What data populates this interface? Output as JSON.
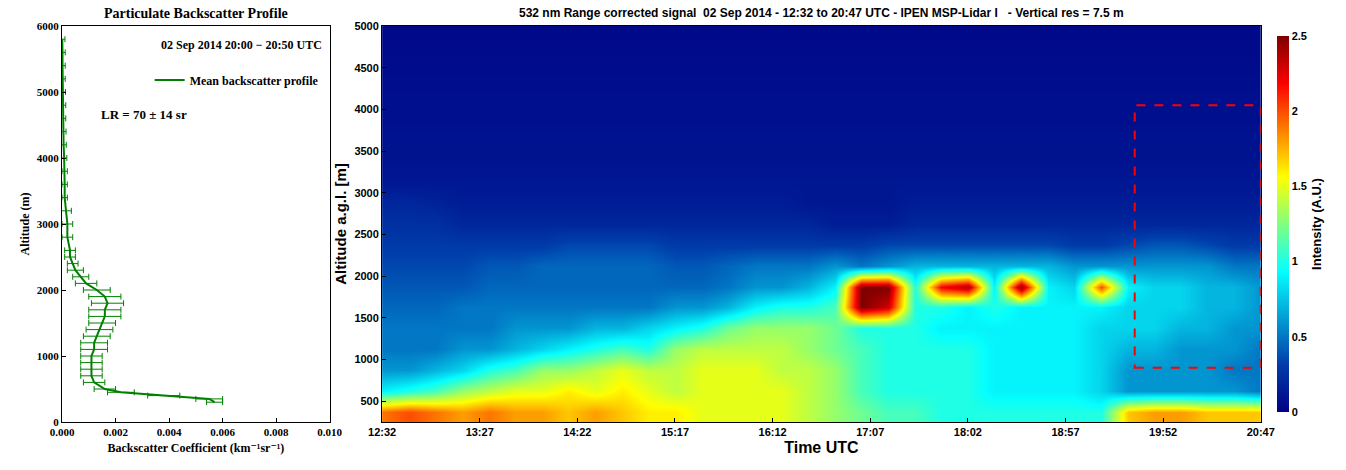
{
  "chart_data": [
    {
      "type": "line",
      "title": "Particulate Backscatter Profile",
      "x_label": "Backscatter Coefficient (km⁻¹sr⁻¹)",
      "y_label": "Altitude (m)",
      "annotations": [
        "02 Sep 2014 20:00 − 20:50 UTC",
        "LR = 70 ± 14 sr"
      ],
      "legend": "upper right",
      "grid": false,
      "xlim": [
        0,
        0.01
      ],
      "xticks": [
        {
          "value": 0,
          "label": "0.000"
        },
        {
          "value": 0.002,
          "label": "0.002"
        },
        {
          "value": 0.004,
          "label": "0.004"
        },
        {
          "value": 0.006,
          "label": "0.006"
        },
        {
          "value": 0.008,
          "label": "0.008"
        },
        {
          "value": 0.01,
          "label": "0.010"
        }
      ],
      "ylim": [
        0,
        6000
      ],
      "yticks": [
        0,
        1000,
        2000,
        3000,
        4000,
        5000,
        6000
      ],
      "series": [
        {
          "name": "Mean backscatter profile",
          "color": "#008000",
          "y": [
            300,
            350,
            400,
            450,
            500,
            600,
            700,
            800,
            900,
            1000,
            1100,
            1200,
            1300,
            1400,
            1500,
            1600,
            1700,
            1800,
            1900,
            2000,
            2100,
            2200,
            2300,
            2400,
            2500,
            2600,
            2800,
            3000,
            3200,
            3400,
            3600,
            3800,
            4000,
            4200,
            4400,
            4600,
            4800,
            5000,
            5200,
            5400,
            5600,
            5800
          ],
          "x": [
            0.0057,
            0.0055,
            0.0038,
            0.0022,
            0.0016,
            0.0012,
            0.0011,
            0.0011,
            0.0011,
            0.0011,
            0.0012,
            0.0012,
            0.0013,
            0.0014,
            0.0015,
            0.0016,
            0.0016,
            0.0017,
            0.0016,
            0.0013,
            0.0009,
            0.0007,
            0.0005,
            0.0004,
            0.0003,
            0.0003,
            0.0002,
            0.0002,
            0.00015,
            0.0001,
            0.0001,
            0.0001,
            8e-05,
            6e-05,
            5e-05,
            4e-05,
            4e-05,
            3e-05,
            2e-05,
            2e-05,
            2e-05,
            1e-05
          ],
          "x_error": [
            0.0003,
            0.0005,
            0.0006,
            0.0005,
            0.0004,
            0.0004,
            0.0004,
            0.0004,
            0.0004,
            0.0004,
            0.0005,
            0.0005,
            0.0005,
            0.0005,
            0.0005,
            0.0006,
            0.0006,
            0.0006,
            0.0006,
            0.0005,
            0.0004,
            0.0003,
            0.0003,
            0.0002,
            0.0002,
            0.0002,
            0.0002,
            0.0002,
            0.0002,
            0.0001,
            0.0001,
            0.0001,
            0.0001,
            0.0001,
            0.0001,
            0.0001,
            0.0001,
            0.0001,
            0.0001,
            0.0001,
            0.0001,
            0.0001
          ]
        }
      ]
    },
    {
      "type": "heatmap",
      "title": "532 nm Range corrected signal  02 Sep 2014 - 12:32 to 20:47 UTC - IPEN MSP-Lidar I   - Vertical res = 7.5 m",
      "x_label": "Time UTC",
      "y_label": "Altitude a.g.l. [m]",
      "colorbar_title": "Intensity (A.U.)",
      "grid": false,
      "xlim": [
        752,
        1247
      ],
      "xticks": [
        {
          "value": 752,
          "label": "12:32"
        },
        {
          "value": 807,
          "label": "13:27"
        },
        {
          "value": 862,
          "label": "14:22"
        },
        {
          "value": 917,
          "label": "15:17"
        },
        {
          "value": 972,
          "label": "16:12"
        },
        {
          "value": 1027,
          "label": "17:07"
        },
        {
          "value": 1082,
          "label": "18:02"
        },
        {
          "value": 1137,
          "label": "18:57"
        },
        {
          "value": 1192,
          "label": "19:52"
        },
        {
          "value": 1247,
          "label": "20:47"
        }
      ],
      "ylim": [
        250,
        5000
      ],
      "yticks": [
        500,
        1000,
        1500,
        2000,
        2500,
        3000,
        3500,
        4000,
        4500,
        5000
      ],
      "zlim": [
        0,
        2.5
      ],
      "zticks": [
        0,
        0.5,
        1,
        1.5,
        2,
        2.5
      ],
      "highlight_box": {
        "x": [
          1176,
          1247
        ],
        "y": [
          900,
          4050
        ],
        "color": "#ff0000"
      },
      "x": [
        752,
        767,
        782,
        797,
        812,
        827,
        842,
        857,
        872,
        887,
        902,
        917,
        932,
        947,
        962,
        977,
        992,
        1007,
        1022,
        1037,
        1052,
        1067,
        1082,
        1097,
        1112,
        1127,
        1142,
        1157,
        1172,
        1187,
        1202,
        1217,
        1232,
        1247
      ],
      "y": [
        375,
        625,
        875,
        1125,
        1375,
        1625,
        1875,
        2125,
        2375,
        2625,
        2875,
        3125,
        3375,
        3625,
        3875,
        4125,
        4375,
        4625,
        4875
      ],
      "z": [
        [
          1.9,
          2.0,
          1.9,
          1.8,
          1.9,
          1.8,
          1.8,
          1.7,
          1.8,
          1.7,
          1.6,
          1.6,
          1.5,
          1.5,
          1.5,
          1.5,
          1.4,
          1.3,
          1.2,
          1.1,
          1.1,
          1.0,
          1.0,
          1.0,
          1.0,
          1.0,
          1.0,
          1.0,
          1.7,
          1.8,
          1.8,
          1.7,
          1.7,
          1.7
        ],
        [
          0.9,
          1.0,
          1.1,
          1.3,
          1.4,
          1.5,
          1.5,
          1.6,
          1.5,
          1.6,
          1.5,
          1.4,
          1.5,
          1.5,
          1.5,
          1.5,
          1.4,
          1.3,
          1.1,
          1.0,
          1.0,
          1.0,
          1.0,
          0.9,
          0.9,
          0.9,
          0.9,
          0.8,
          0.6,
          0.6,
          0.6,
          0.6,
          0.6,
          0.5
        ],
        [
          0.6,
          0.6,
          0.7,
          0.8,
          1.0,
          1.1,
          1.3,
          1.3,
          1.4,
          1.5,
          1.4,
          1.4,
          1.5,
          1.5,
          1.5,
          1.4,
          1.4,
          1.3,
          1.1,
          1.0,
          1.0,
          1.0,
          1.0,
          0.9,
          0.9,
          0.9,
          0.9,
          0.8,
          0.6,
          0.6,
          0.6,
          0.6,
          0.5,
          0.5
        ],
        [
          0.5,
          0.5,
          0.5,
          0.6,
          0.6,
          0.7,
          0.8,
          0.9,
          1.0,
          1.1,
          1.0,
          1.3,
          1.4,
          1.4,
          1.4,
          1.4,
          1.3,
          1.2,
          1.1,
          1.0,
          1.0,
          1.0,
          1.0,
          0.9,
          0.9,
          0.9,
          0.9,
          0.8,
          0.7,
          0.7,
          0.6,
          0.6,
          0.6,
          0.5
        ],
        [
          0.5,
          0.5,
          0.5,
          0.5,
          0.5,
          0.6,
          0.6,
          0.6,
          0.7,
          0.7,
          0.8,
          0.9,
          1.0,
          1.2,
          1.3,
          1.3,
          1.3,
          1.2,
          1.0,
          1.0,
          1.0,
          0.9,
          0.9,
          0.9,
          0.9,
          0.9,
          0.9,
          0.8,
          0.8,
          0.8,
          0.7,
          0.7,
          0.6,
          0.6
        ],
        [
          0.45,
          0.45,
          0.45,
          0.5,
          0.5,
          0.5,
          0.5,
          0.5,
          0.5,
          0.5,
          0.5,
          0.6,
          0.6,
          0.7,
          0.9,
          1.0,
          1.0,
          1.1,
          2.5,
          2.3,
          1.0,
          1.0,
          0.9,
          1.0,
          0.9,
          0.9,
          0.9,
          0.9,
          0.8,
          0.8,
          0.8,
          0.7,
          0.7,
          0.6
        ],
        [
          0.4,
          0.4,
          0.4,
          0.4,
          0.45,
          0.45,
          0.45,
          0.45,
          0.45,
          0.45,
          0.45,
          0.45,
          0.45,
          0.5,
          0.6,
          0.6,
          0.7,
          0.9,
          2.5,
          2.5,
          1.0,
          2.2,
          2.4,
          0.9,
          2.5,
          0.9,
          0.8,
          2.0,
          0.9,
          0.8,
          0.8,
          0.7,
          0.7,
          0.6
        ],
        [
          0.35,
          0.35,
          0.35,
          0.35,
          0.4,
          0.4,
          0.45,
          0.45,
          0.45,
          0.45,
          0.45,
          0.4,
          0.4,
          0.45,
          0.5,
          0.5,
          0.5,
          0.6,
          0.5,
          0.6,
          0.7,
          0.7,
          0.7,
          0.7,
          0.7,
          0.7,
          0.6,
          0.6,
          0.6,
          0.6,
          0.6,
          0.6,
          0.5,
          0.5
        ],
        [
          0.3,
          0.3,
          0.3,
          0.3,
          0.3,
          0.3,
          0.3,
          0.35,
          0.35,
          0.35,
          0.35,
          0.3,
          0.3,
          0.3,
          0.3,
          0.3,
          0.3,
          0.3,
          0.3,
          0.35,
          0.35,
          0.35,
          0.35,
          0.35,
          0.35,
          0.35,
          0.3,
          0.3,
          0.35,
          0.4,
          0.4,
          0.35,
          0.3,
          0.3
        ],
        [
          0.25,
          0.25,
          0.25,
          0.2,
          0.2,
          0.2,
          0.2,
          0.2,
          0.2,
          0.2,
          0.2,
          0.2,
          0.2,
          0.2,
          0.2,
          0.2,
          0.2,
          0.15,
          0.15,
          0.15,
          0.2,
          0.2,
          0.2,
          0.2,
          0.2,
          0.2,
          0.2,
          0.2,
          0.2,
          0.2,
          0.2,
          0.2,
          0.2,
          0.2
        ],
        [
          0.2,
          0.2,
          0.18,
          0.15,
          0.15,
          0.15,
          0.15,
          0.15,
          0.15,
          0.15,
          0.15,
          0.15,
          0.15,
          0.15,
          0.15,
          0.15,
          0.12,
          0.12,
          0.12,
          0.12,
          0.15,
          0.15,
          0.15,
          0.15,
          0.15,
          0.15,
          0.15,
          0.15,
          0.15,
          0.15,
          0.15,
          0.15,
          0.15,
          0.15
        ],
        [
          0.12,
          0.12,
          0.12,
          0.12,
          0.12,
          0.12,
          0.12,
          0.12,
          0.12,
          0.12,
          0.12,
          0.12,
          0.12,
          0.12,
          0.12,
          0.12,
          0.12,
          0.12,
          0.12,
          0.12,
          0.12,
          0.12,
          0.12,
          0.12,
          0.12,
          0.12,
          0.12,
          0.12,
          0.12,
          0.12,
          0.12,
          0.12,
          0.12,
          0.12
        ],
        [
          0.1,
          0.1,
          0.1,
          0.1,
          0.1,
          0.1,
          0.1,
          0.1,
          0.1,
          0.1,
          0.1,
          0.1,
          0.1,
          0.1,
          0.1,
          0.1,
          0.1,
          0.1,
          0.1,
          0.1,
          0.1,
          0.1,
          0.1,
          0.1,
          0.1,
          0.1,
          0.1,
          0.1,
          0.1,
          0.1,
          0.1,
          0.1,
          0.1,
          0.1
        ],
        [
          0.1,
          0.1,
          0.1,
          0.1,
          0.1,
          0.1,
          0.1,
          0.1,
          0.1,
          0.1,
          0.1,
          0.1,
          0.1,
          0.1,
          0.1,
          0.1,
          0.1,
          0.1,
          0.1,
          0.1,
          0.1,
          0.1,
          0.1,
          0.1,
          0.1,
          0.1,
          0.1,
          0.1,
          0.1,
          0.1,
          0.1,
          0.1,
          0.1,
          0.1
        ],
        [
          0.08,
          0.08,
          0.08,
          0.08,
          0.08,
          0.08,
          0.08,
          0.08,
          0.08,
          0.08,
          0.08,
          0.08,
          0.08,
          0.08,
          0.08,
          0.08,
          0.08,
          0.08,
          0.08,
          0.08,
          0.08,
          0.08,
          0.08,
          0.08,
          0.08,
          0.08,
          0.08,
          0.08,
          0.08,
          0.08,
          0.08,
          0.08,
          0.08,
          0.08
        ],
        [
          0.08,
          0.08,
          0.08,
          0.08,
          0.08,
          0.08,
          0.08,
          0.08,
          0.08,
          0.08,
          0.08,
          0.08,
          0.08,
          0.08,
          0.08,
          0.08,
          0.08,
          0.08,
          0.08,
          0.08,
          0.08,
          0.08,
          0.08,
          0.08,
          0.08,
          0.08,
          0.08,
          0.08,
          0.08,
          0.08,
          0.08,
          0.08,
          0.08,
          0.08
        ],
        [
          0.07,
          0.07,
          0.07,
          0.07,
          0.07,
          0.07,
          0.07,
          0.07,
          0.07,
          0.07,
          0.07,
          0.07,
          0.07,
          0.07,
          0.07,
          0.07,
          0.07,
          0.07,
          0.07,
          0.07,
          0.07,
          0.07,
          0.07,
          0.07,
          0.07,
          0.07,
          0.07,
          0.07,
          0.07,
          0.07,
          0.07,
          0.07,
          0.07,
          0.07
        ],
        [
          0.06,
          0.06,
          0.06,
          0.06,
          0.06,
          0.06,
          0.06,
          0.06,
          0.06,
          0.06,
          0.06,
          0.06,
          0.06,
          0.06,
          0.06,
          0.06,
          0.06,
          0.06,
          0.06,
          0.06,
          0.06,
          0.06,
          0.06,
          0.06,
          0.06,
          0.06,
          0.06,
          0.06,
          0.06,
          0.06,
          0.06,
          0.06,
          0.06,
          0.06
        ],
        [
          0.05,
          0.05,
          0.05,
          0.05,
          0.05,
          0.05,
          0.05,
          0.05,
          0.05,
          0.05,
          0.05,
          0.05,
          0.05,
          0.05,
          0.05,
          0.05,
          0.05,
          0.05,
          0.05,
          0.05,
          0.05,
          0.05,
          0.05,
          0.05,
          0.05,
          0.05,
          0.05,
          0.05,
          0.05,
          0.05,
          0.05,
          0.05,
          0.05,
          0.05
        ]
      ]
    }
  ]
}
